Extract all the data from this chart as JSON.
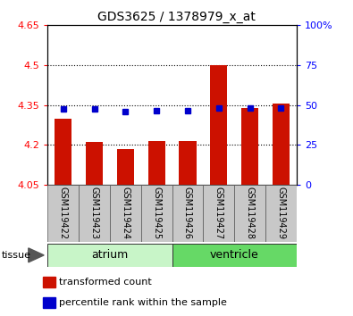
{
  "title": "GDS3625 / 1378979_x_at",
  "samples": [
    "GSM119422",
    "GSM119423",
    "GSM119424",
    "GSM119425",
    "GSM119426",
    "GSM119427",
    "GSM119428",
    "GSM119429"
  ],
  "red_values": [
    4.3,
    4.21,
    4.185,
    4.215,
    4.215,
    4.5,
    4.34,
    4.355
  ],
  "blue_values": [
    4.335,
    4.335,
    4.325,
    4.33,
    4.33,
    4.34,
    4.34,
    4.34
  ],
  "baseline": 4.05,
  "ylim_left": [
    4.05,
    4.65
  ],
  "ylim_right": [
    0,
    100
  ],
  "yticks_left": [
    4.05,
    4.2,
    4.35,
    4.5,
    4.65
  ],
  "yticks_right": [
    0,
    25,
    50,
    75,
    100
  ],
  "ytick_labels_right": [
    "0",
    "25",
    "50",
    "75",
    "100%"
  ],
  "grid_values": [
    4.2,
    4.35,
    4.5
  ],
  "tissue_groups": [
    {
      "label": "atrium",
      "start": 0,
      "end": 4,
      "color": "#c8f5c8"
    },
    {
      "label": "ventricle",
      "start": 4,
      "end": 8,
      "color": "#66d966"
    }
  ],
  "tissue_label": "tissue",
  "bar_color": "#cc1100",
  "blue_color": "#0000cc",
  "bar_width": 0.55,
  "background_color": "#ffffff",
  "plot_bg_color": "#ffffff",
  "sample_cell_color": "#c8c8c8",
  "legend_items": [
    {
      "color": "#cc1100",
      "label": "transformed count"
    },
    {
      "color": "#0000cc",
      "label": "percentile rank within the sample"
    }
  ]
}
